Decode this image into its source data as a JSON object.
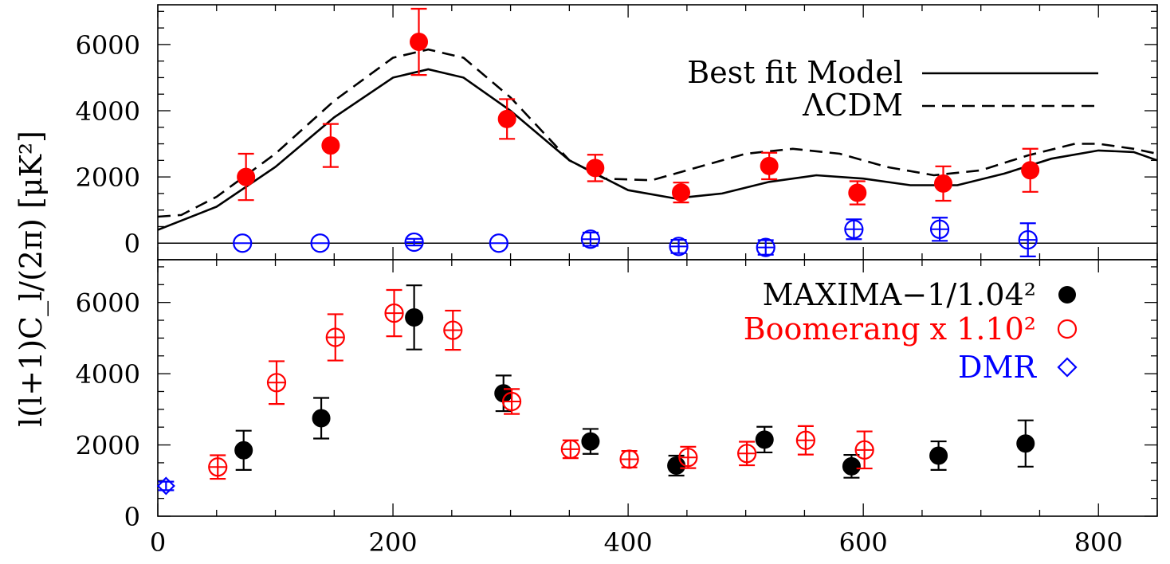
{
  "chart_data": [
    {
      "type": "scatter",
      "panel": "top",
      "ylabel": "l(l+1)C_l/(2π) [μK²]",
      "xlim": [
        0,
        850
      ],
      "ylim": [
        -500,
        7200
      ],
      "y_ticks": [
        0,
        2000,
        4000,
        6000
      ],
      "legend": {
        "placement": "top-right",
        "entries": [
          {
            "label": "Best fit Model",
            "style": "solid"
          },
          {
            "label": "ΛCDM",
            "style": "dashed"
          }
        ]
      },
      "lines": [
        {
          "name": "Best fit Model",
          "style": "solid",
          "color": "#000000",
          "x": [
            0,
            50,
            100,
            150,
            200,
            230,
            260,
            300,
            350,
            400,
            440,
            480,
            520,
            560,
            600,
            640,
            680,
            720,
            760,
            800,
            830,
            850
          ],
          "y": [
            400,
            1100,
            2300,
            3800,
            5000,
            5250,
            5000,
            4000,
            2500,
            1600,
            1350,
            1500,
            1850,
            2050,
            1950,
            1750,
            1750,
            2100,
            2550,
            2800,
            2750,
            2500
          ]
        },
        {
          "name": "ΛCDM",
          "style": "dashed",
          "color": "#000000",
          "x": [
            0,
            20,
            50,
            100,
            150,
            200,
            230,
            260,
            300,
            350,
            380,
            420,
            460,
            500,
            540,
            580,
            620,
            660,
            700,
            740,
            780,
            800,
            830,
            850
          ],
          "y": [
            800,
            850,
            1400,
            2700,
            4300,
            5600,
            5850,
            5600,
            4400,
            2500,
            1950,
            1900,
            2300,
            2700,
            2850,
            2700,
            2300,
            2050,
            2200,
            2650,
            3000,
            3000,
            2850,
            2700
          ]
        }
      ],
      "series": [
        {
          "name": "",
          "color": "#ff0000",
          "marker": "filled-circle",
          "points": [
            {
              "x": 75,
              "y": 2000,
              "err": 700
            },
            {
              "x": 147,
              "y": 2950,
              "err": 650
            },
            {
              "x": 222,
              "y": 6080,
              "err": 1000
            },
            {
              "x": 297,
              "y": 3750,
              "err": 600
            },
            {
              "x": 372,
              "y": 2270,
              "err": 400
            },
            {
              "x": 445,
              "y": 1530,
              "err": 300
            },
            {
              "x": 520,
              "y": 2330,
              "err": 400
            },
            {
              "x": 595,
              "y": 1520,
              "err": 350
            },
            {
              "x": 668,
              "y": 1800,
              "err": 520
            },
            {
              "x": 742,
              "y": 2200,
              "err": 650
            }
          ]
        },
        {
          "name": "",
          "color": "#0000ff",
          "marker": "open-circle",
          "points": [
            {
              "x": 72,
              "y": 0,
              "err": 0
            },
            {
              "x": 138,
              "y": 0,
              "err": 0
            },
            {
              "x": 218,
              "y": 30,
              "err": 100
            },
            {
              "x": 290,
              "y": 0,
              "err": 0
            },
            {
              "x": 368,
              "y": 120,
              "err": 200
            },
            {
              "x": 443,
              "y": -100,
              "err": 200
            },
            {
              "x": 517,
              "y": -130,
              "err": 220
            },
            {
              "x": 592,
              "y": 420,
              "err": 300
            },
            {
              "x": 665,
              "y": 420,
              "err": 350
            },
            {
              "x": 740,
              "y": 100,
              "err": 500
            }
          ]
        }
      ]
    },
    {
      "type": "scatter",
      "panel": "bottom",
      "xlim": [
        0,
        850
      ],
      "ylim": [
        0,
        7200
      ],
      "x_ticks": [
        0,
        200,
        400,
        600,
        800
      ],
      "y_ticks": [
        0,
        2000,
        4000,
        6000
      ],
      "legend": {
        "placement": "top-right",
        "entries": [
          {
            "label": "MAXIMA−1/1.04²",
            "color": "#000000",
            "marker": "filled-circle"
          },
          {
            "label": "Boomerang x 1.10²",
            "color": "#ff0000",
            "marker": "open-circle"
          },
          {
            "label": "DMR",
            "color": "#0000ff",
            "marker": "diamond"
          }
        ]
      },
      "series": [
        {
          "name": "MAXIMA−1/1.04²",
          "color": "#000000",
          "marker": "filled-circle",
          "points": [
            {
              "x": 73,
              "y": 1850,
              "err": 550
            },
            {
              "x": 139,
              "y": 2750,
              "err": 570
            },
            {
              "x": 218,
              "y": 5580,
              "err": 900
            },
            {
              "x": 294,
              "y": 3450,
              "err": 500
            },
            {
              "x": 368,
              "y": 2100,
              "err": 350
            },
            {
              "x": 441,
              "y": 1420,
              "err": 280
            },
            {
              "x": 516,
              "y": 2150,
              "err": 360
            },
            {
              "x": 590,
              "y": 1400,
              "err": 320
            },
            {
              "x": 664,
              "y": 1700,
              "err": 400
            },
            {
              "x": 738,
              "y": 2040,
              "err": 650
            }
          ]
        },
        {
          "name": "Boomerang x 1.10²",
          "color": "#ff0000",
          "marker": "open-circle",
          "points": [
            {
              "x": 51,
              "y": 1380,
              "err": 330
            },
            {
              "x": 101,
              "y": 3750,
              "err": 600
            },
            {
              "x": 151,
              "y": 5020,
              "err": 650
            },
            {
              "x": 201,
              "y": 5700,
              "err": 650
            },
            {
              "x": 251,
              "y": 5220,
              "err": 550
            },
            {
              "x": 301,
              "y": 3220,
              "err": 350
            },
            {
              "x": 351,
              "y": 1880,
              "err": 250
            },
            {
              "x": 401,
              "y": 1600,
              "err": 230
            },
            {
              "x": 451,
              "y": 1650,
              "err": 300
            },
            {
              "x": 501,
              "y": 1760,
              "err": 330
            },
            {
              "x": 551,
              "y": 2130,
              "err": 400
            },
            {
              "x": 601,
              "y": 1860,
              "err": 520
            }
          ]
        },
        {
          "name": "DMR",
          "color": "#0000ff",
          "marker": "diamond",
          "points": [
            {
              "x": 7,
              "y": 850,
              "err": 120
            }
          ]
        }
      ]
    }
  ]
}
